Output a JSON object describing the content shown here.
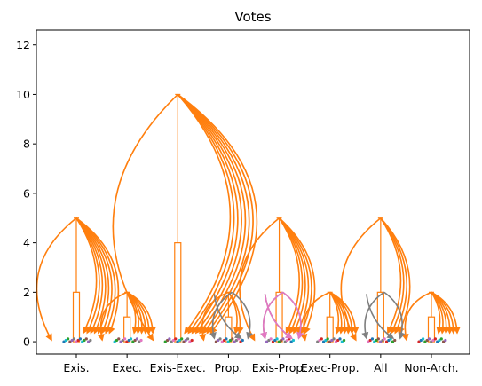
{
  "chart_data": {
    "type": "box",
    "title": "Votes",
    "xlabel": "",
    "ylabel": "",
    "ylim": [
      -0.5,
      12.6
    ],
    "yticks": [
      0,
      2,
      4,
      6,
      8,
      10,
      12
    ],
    "grid": false,
    "categories": [
      "Exis.",
      "Exec.",
      "Exis-Exec.",
      "Prop.",
      "Exis-Prop.",
      "Exec-Prop.",
      "All",
      "Non-Arch."
    ],
    "boxes": [
      {
        "q1": 0,
        "median": 0,
        "q3": 2,
        "whisker_low": 0,
        "whisker_high": 5
      },
      {
        "q1": 0,
        "median": 0,
        "q3": 1,
        "whisker_low": 0,
        "whisker_high": 2
      },
      {
        "q1": 0,
        "median": 0,
        "q3": 4,
        "whisker_low": 0,
        "whisker_high": 10
      },
      {
        "q1": 0,
        "median": 0,
        "q3": 1,
        "whisker_low": 0,
        "whisker_high": 2
      },
      {
        "q1": 0,
        "median": 0,
        "q3": 2,
        "whisker_low": 0,
        "whisker_high": 5
      },
      {
        "q1": 0,
        "median": 0,
        "q3": 1,
        "whisker_low": 0,
        "whisker_high": 2
      },
      {
        "q1": 0,
        "median": 0,
        "q3": 2,
        "whisker_low": 0,
        "whisker_high": 5
      },
      {
        "q1": 0,
        "median": 0,
        "q3": 1,
        "whisker_low": 0,
        "whisker_high": 2
      }
    ],
    "colors": {
      "main": "#ff7f0e",
      "gray": "#7f7f7f",
      "pink": "#e377c2",
      "blue": "#1f77b4",
      "cyan": "#17becf",
      "green": "#2ca02c",
      "brown": "#8c564b",
      "purple": "#9467bd",
      "red": "#d62728"
    }
  }
}
